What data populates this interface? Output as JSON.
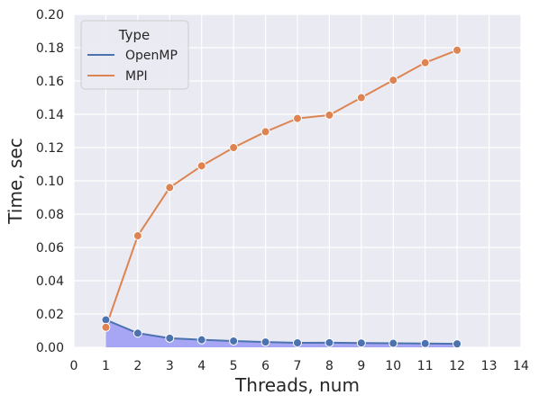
{
  "chart_data": {
    "type": "line",
    "xlabel": "Threads, num",
    "ylabel": "Time, sec",
    "xlim": [
      0,
      14
    ],
    "ylim": [
      0,
      0.2
    ],
    "xticks": [
      0,
      1,
      2,
      3,
      4,
      5,
      6,
      7,
      8,
      9,
      10,
      11,
      12,
      13,
      14
    ],
    "yticks": [
      0.0,
      0.02,
      0.04,
      0.06,
      0.08,
      0.1,
      0.12,
      0.14,
      0.16,
      0.18,
      0.2
    ],
    "ytick_labels": [
      "0.00",
      "0.02",
      "0.04",
      "0.06",
      "0.08",
      "0.10",
      "0.12",
      "0.14",
      "0.16",
      "0.18",
      "0.20"
    ],
    "grid": true,
    "legend": {
      "title": "Type",
      "placement": "top-left"
    },
    "series": [
      {
        "name": "OpenMP",
        "color": "#4c72b0",
        "fill": "#a6a6f5",
        "filled": true,
        "x": [
          1,
          2,
          3,
          4,
          5,
          6,
          7,
          8,
          9,
          10,
          11,
          12
        ],
        "y": [
          0.0165,
          0.0085,
          0.0055,
          0.0045,
          0.0038,
          0.0032,
          0.0027,
          0.0028,
          0.0026,
          0.0024,
          0.0023,
          0.0021
        ]
      },
      {
        "name": "MPI",
        "color": "#dd8452",
        "filled": false,
        "x": [
          1,
          2,
          3,
          4,
          5,
          6,
          7,
          8,
          9,
          10,
          11,
          12
        ],
        "y": [
          0.012,
          0.067,
          0.096,
          0.109,
          0.12,
          0.1295,
          0.1375,
          0.1395,
          0.15,
          0.1605,
          0.171,
          0.1785
        ]
      }
    ]
  }
}
